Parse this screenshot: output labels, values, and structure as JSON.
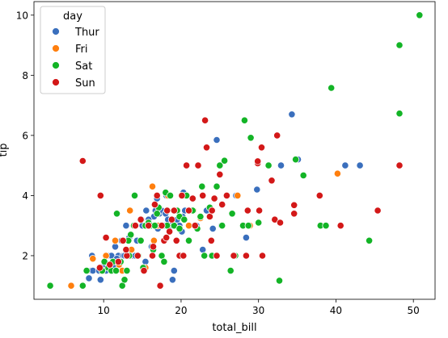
{
  "chart_data": {
    "type": "scatter",
    "xlabel": "total_bill",
    "ylabel": "tip",
    "xlim": [
      1.0,
      52.8
    ],
    "ylim": [
      0.55,
      10.45
    ],
    "x_ticks": [
      10,
      20,
      30,
      40,
      50
    ],
    "y_ticks": [
      2,
      4,
      6,
      8,
      10
    ],
    "legend": {
      "title": "day",
      "placement": "top-left",
      "entries": [
        "Thur",
        "Fri",
        "Sat",
        "Sun"
      ]
    },
    "colors": {
      "Thur": "#3a6fbd",
      "Fri": "#ff7f0e",
      "Sat": "#13b426",
      "Sun": "#d31818"
    },
    "series": [
      {
        "name": "Thur",
        "points": [
          [
            8.1,
            1.25
          ],
          [
            8.4,
            1.5
          ],
          [
            8.5,
            2.0
          ],
          [
            8.6,
            1.5
          ],
          [
            9.4,
            1.5
          ],
          [
            9.6,
            1.2
          ],
          [
            9.7,
            1.6
          ],
          [
            10.1,
            1.7
          ],
          [
            10.3,
            1.5
          ],
          [
            10.7,
            2.0
          ],
          [
            11.0,
            2.0
          ],
          [
            11.2,
            1.5
          ],
          [
            11.4,
            1.6
          ],
          [
            11.5,
            2.3
          ],
          [
            11.9,
            2.0
          ],
          [
            12.3,
            2.5
          ],
          [
            12.5,
            2.0
          ],
          [
            12.7,
            2.0
          ],
          [
            13.0,
            2.0
          ],
          [
            13.3,
            2.6
          ],
          [
            13.4,
            2.0
          ],
          [
            13.8,
            2.0
          ],
          [
            14.3,
            2.5
          ],
          [
            14.5,
            2.0
          ],
          [
            14.9,
            3.2
          ],
          [
            15.0,
            3.0
          ],
          [
            15.5,
            3.5
          ],
          [
            15.7,
            3.0
          ],
          [
            16.0,
            3.0
          ],
          [
            16.2,
            2.3
          ],
          [
            16.3,
            3.0
          ],
          [
            16.5,
            3.3
          ],
          [
            16.7,
            3.5
          ],
          [
            17.0,
            2.9
          ],
          [
            17.2,
            3.4
          ],
          [
            17.5,
            3.5
          ],
          [
            17.8,
            3.0
          ],
          [
            18.0,
            3.4
          ],
          [
            18.3,
            3.2
          ],
          [
            18.7,
            3.0
          ],
          [
            18.9,
            1.2
          ],
          [
            19.1,
            1.5
          ],
          [
            19.5,
            3.2
          ],
          [
            19.8,
            3.0
          ],
          [
            20.1,
            2.8
          ],
          [
            20.3,
            4.1
          ],
          [
            20.5,
            3.5
          ],
          [
            21.0,
            3.0
          ],
          [
            22.0,
            3.0
          ],
          [
            22.8,
            2.2
          ],
          [
            23.3,
            3.5
          ],
          [
            24.1,
            2.9
          ],
          [
            24.6,
            5.85
          ],
          [
            25.2,
            3.0
          ],
          [
            27.1,
            4.0
          ],
          [
            29.8,
            4.2
          ],
          [
            32.9,
            5.0
          ],
          [
            34.3,
            6.7
          ],
          [
            35.1,
            5.2
          ],
          [
            41.2,
            5.0
          ],
          [
            43.1,
            5.0
          ],
          [
            16.9,
            3.9
          ],
          [
            18.1,
            4.0
          ],
          [
            20.2,
            3.3
          ],
          [
            12.9,
            3.0
          ],
          [
            15.8,
            3.2
          ],
          [
            22.5,
            3.3
          ],
          [
            14.1,
            2.0
          ],
          [
            11.7,
            1.9
          ],
          [
            28.4,
            2.6
          ],
          [
            15.4,
            1.8
          ]
        ]
      },
      {
        "name": "Fri",
        "points": [
          [
            5.8,
            1.0
          ],
          [
            8.6,
            1.9
          ],
          [
            10.3,
            2.0
          ],
          [
            11.5,
            2.5
          ],
          [
            12.0,
            1.7
          ],
          [
            12.4,
            1.5
          ],
          [
            13.4,
            3.5
          ],
          [
            13.6,
            2.2
          ],
          [
            15.4,
            1.6
          ],
          [
            16.3,
            4.3
          ],
          [
            16.5,
            2.5
          ],
          [
            17.0,
            3.0
          ],
          [
            18.3,
            4.0
          ],
          [
            21.0,
            3.0
          ],
          [
            21.6,
            3.5
          ],
          [
            22.5,
            3.25
          ],
          [
            27.3,
            4.0
          ],
          [
            28.9,
            3.0
          ],
          [
            40.2,
            4.73
          ]
        ]
      },
      {
        "name": "Sat",
        "points": [
          [
            3.1,
            1.0
          ],
          [
            7.3,
            1.0
          ],
          [
            7.8,
            1.5
          ],
          [
            9.8,
            1.5
          ],
          [
            10.1,
            1.8
          ],
          [
            10.6,
            1.6
          ],
          [
            11.0,
            1.5
          ],
          [
            11.2,
            1.8
          ],
          [
            11.6,
            1.5
          ],
          [
            11.7,
            3.4
          ],
          [
            12.2,
            1.8
          ],
          [
            12.4,
            1.0
          ],
          [
            12.7,
            1.2
          ],
          [
            13.0,
            1.5
          ],
          [
            13.3,
            2.0
          ],
          [
            13.5,
            2.7
          ],
          [
            13.9,
            3.0
          ],
          [
            14.0,
            4.0
          ],
          [
            14.5,
            2.0
          ],
          [
            14.8,
            2.5
          ],
          [
            15.1,
            1.6
          ],
          [
            15.4,
            3.0
          ],
          [
            15.8,
            3.1
          ],
          [
            16.1,
            3.0
          ],
          [
            16.4,
            2.2
          ],
          [
            16.6,
            3.0
          ],
          [
            17.1,
            3.6
          ],
          [
            17.5,
            2.0
          ],
          [
            17.8,
            1.8
          ],
          [
            18.0,
            4.1
          ],
          [
            18.2,
            3.0
          ],
          [
            18.6,
            4.0
          ],
          [
            19.1,
            3.0
          ],
          [
            19.5,
            3.5
          ],
          [
            19.8,
            3.3
          ],
          [
            20.2,
            2.0
          ],
          [
            20.4,
            3.2
          ],
          [
            20.7,
            4.0
          ],
          [
            21.0,
            2.5
          ],
          [
            21.5,
            3.5
          ],
          [
            22.1,
            2.9
          ],
          [
            22.5,
            3.3
          ],
          [
            23.0,
            2.0
          ],
          [
            23.7,
            3.6
          ],
          [
            24.0,
            2.0
          ],
          [
            24.6,
            4.3
          ],
          [
            25.0,
            5.0
          ],
          [
            25.3,
            3.0
          ],
          [
            25.6,
            5.16
          ],
          [
            26.4,
            1.5
          ],
          [
            26.6,
            3.4
          ],
          [
            27.0,
            2.0
          ],
          [
            28.0,
            3.0
          ],
          [
            28.2,
            6.5
          ],
          [
            28.7,
            3.0
          ],
          [
            29.0,
            5.92
          ],
          [
            30.0,
            3.1
          ],
          [
            31.3,
            5.0
          ],
          [
            32.7,
            1.17
          ],
          [
            34.8,
            5.2
          ],
          [
            35.8,
            4.67
          ],
          [
            38.0,
            3.0
          ],
          [
            38.7,
            3.0
          ],
          [
            39.4,
            7.58
          ],
          [
            44.3,
            2.5
          ],
          [
            48.2,
            9.0
          ],
          [
            48.2,
            6.73
          ],
          [
            50.8,
            10.0
          ],
          [
            19.8,
            2.9
          ],
          [
            22.7,
            4.3
          ],
          [
            16.9,
            3.4
          ],
          [
            13.2,
            2.5
          ]
        ]
      },
      {
        "name": "Sun",
        "points": [
          [
            7.3,
            5.15
          ],
          [
            9.5,
            1.6
          ],
          [
            9.6,
            4.0
          ],
          [
            10.3,
            2.6
          ],
          [
            10.8,
            1.7
          ],
          [
            11.9,
            1.8
          ],
          [
            12.5,
            2.5
          ],
          [
            13.0,
            2.0
          ],
          [
            14.1,
            3.0
          ],
          [
            14.8,
            3.2
          ],
          [
            15.2,
            1.5
          ],
          [
            15.8,
            3.0
          ],
          [
            16.3,
            2.0
          ],
          [
            16.6,
            3.7
          ],
          [
            16.9,
            4.0
          ],
          [
            17.3,
            1.0
          ],
          [
            17.5,
            3.0
          ],
          [
            17.8,
            2.5
          ],
          [
            18.1,
            2.6
          ],
          [
            18.2,
            3.5
          ],
          [
            18.5,
            2.8
          ],
          [
            19.1,
            3.5
          ],
          [
            19.4,
            2.5
          ],
          [
            19.8,
            2.0
          ],
          [
            20.3,
            2.0
          ],
          [
            20.7,
            5.0
          ],
          [
            21.0,
            3.5
          ],
          [
            21.5,
            3.9
          ],
          [
            22.2,
            5.0
          ],
          [
            22.8,
            4.0
          ],
          [
            23.1,
            6.5
          ],
          [
            23.3,
            5.6
          ],
          [
            23.7,
            3.3
          ],
          [
            24.0,
            3.5
          ],
          [
            24.3,
            3.9
          ],
          [
            24.6,
            2.0
          ],
          [
            25.0,
            4.7
          ],
          [
            25.3,
            3.7
          ],
          [
            25.9,
            4.0
          ],
          [
            26.8,
            2.0
          ],
          [
            28.4,
            2.0
          ],
          [
            28.6,
            3.5
          ],
          [
            29.9,
            5.07
          ],
          [
            30.1,
            3.5
          ],
          [
            30.4,
            5.6
          ],
          [
            31.7,
            4.5
          ],
          [
            32.1,
            3.2
          ],
          [
            32.4,
            6.0
          ],
          [
            32.8,
            3.1
          ],
          [
            34.6,
            3.4
          ],
          [
            34.6,
            3.68
          ],
          [
            37.9,
            4.0
          ],
          [
            40.6,
            3.0
          ],
          [
            45.4,
            3.5
          ],
          [
            48.2,
            5.0
          ],
          [
            29.9,
            5.14
          ],
          [
            18.8,
            3.2
          ],
          [
            14.4,
            2.0
          ],
          [
            20.1,
            4.0
          ],
          [
            30.5,
            2.0
          ],
          [
            23.9,
            2.5
          ],
          [
            16.4,
            2.3
          ],
          [
            12.9,
            2.2
          ],
          [
            21.8,
            3.0
          ]
        ]
      }
    ]
  }
}
